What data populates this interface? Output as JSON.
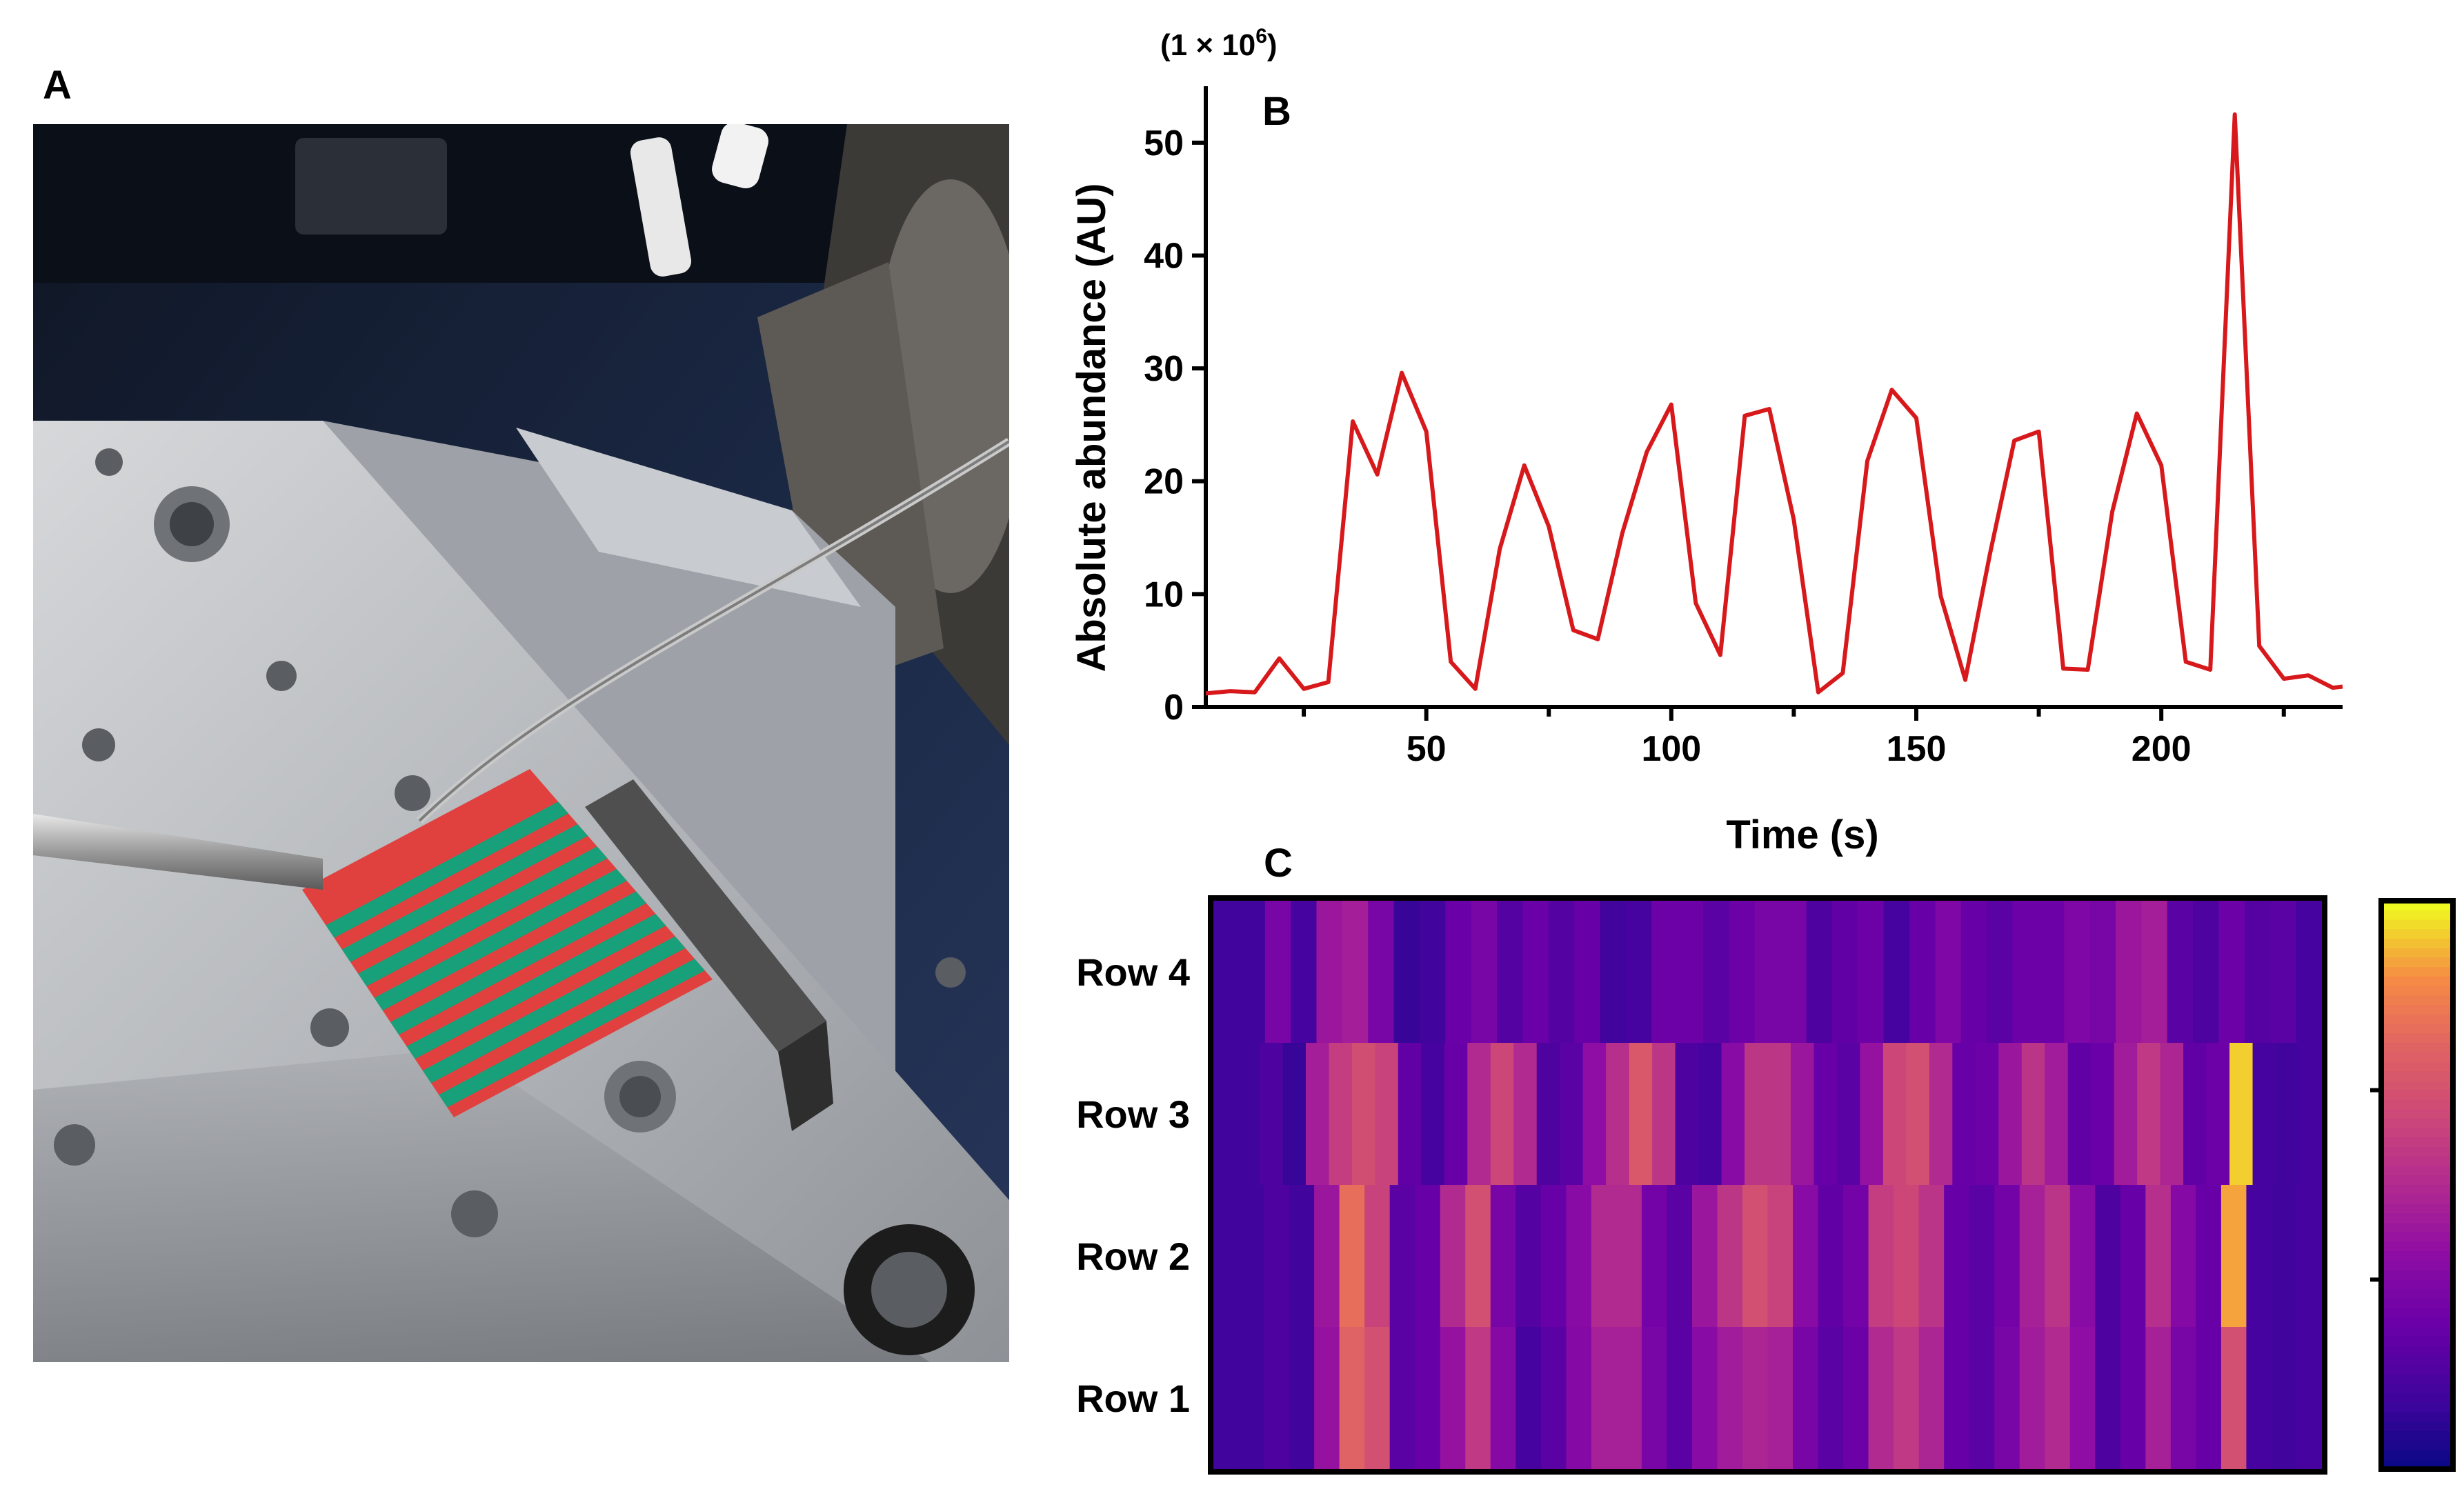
{
  "panels": {
    "a": "A",
    "b": "B",
    "c": "C"
  },
  "photo": {
    "description_icon": "mass-spec-stage-photo",
    "colors": {
      "metal": "#b9bcc0",
      "dark": "#1f2a44",
      "red": "#e0403e",
      "green": "#17a07a"
    }
  },
  "chart_data": [
    {
      "type": "line",
      "xlabel": "Time (s)",
      "ylabel": "Absolute abundance (AU)",
      "y_multiplier": "(1 × 10",
      "y_multiplier_exp": "6",
      "y_multiplier_close": ")",
      "xlim": [
        5,
        237
      ],
      "ylim": [
        0,
        55
      ],
      "xticks": [
        50,
        100,
        150,
        200
      ],
      "yticks": [
        0,
        10,
        20,
        30,
        40,
        50
      ],
      "line_color": "#d7191c",
      "x": [
        5,
        10,
        15,
        20,
        25,
        30,
        35,
        40,
        45,
        50,
        55,
        60,
        65,
        70,
        75,
        80,
        85,
        90,
        95,
        100,
        105,
        110,
        115,
        120,
        125,
        130,
        135,
        140,
        145,
        150,
        155,
        160,
        165,
        170,
        175,
        180,
        185,
        190,
        195,
        200,
        205,
        210,
        215,
        220,
        225,
        230,
        235,
        237
      ],
      "y": [
        1.2,
        1.4,
        1.3,
        4.3,
        1.6,
        2.2,
        25.3,
        20.6,
        29.6,
        24.4,
        4.0,
        1.6,
        14.0,
        21.4,
        16.0,
        6.8,
        6.0,
        15.4,
        22.6,
        26.8,
        9.2,
        4.6,
        25.8,
        26.4,
        16.6,
        1.3,
        3.0,
        21.8,
        28.1,
        25.6,
        9.8,
        2.4,
        13.5,
        23.6,
        24.4,
        3.4,
        3.3,
        17.3,
        26.0,
        21.4,
        4.0,
        3.3,
        52.5,
        5.4,
        2.5,
        2.8,
        1.7,
        1.8
      ]
    },
    {
      "type": "heatmap",
      "rows": [
        "Row 4",
        "Row 3",
        "Row 2",
        "Row 1"
      ],
      "colormap": "plasma",
      "colorbar_ticks": 3,
      "values": [
        [
          0.12,
          0.12,
          0.3,
          0.14,
          0.42,
          0.45,
          0.3,
          0.1,
          0.12,
          0.25,
          0.3,
          0.18,
          0.25,
          0.18,
          0.24,
          0.12,
          0.14,
          0.26,
          0.26,
          0.2,
          0.26,
          0.3,
          0.3,
          0.16,
          0.22,
          0.26,
          0.14,
          0.24,
          0.32,
          0.24,
          0.2,
          0.26,
          0.26,
          0.32,
          0.3,
          0.42,
          0.45,
          0.2,
          0.16,
          0.26,
          0.18,
          0.2,
          0.14
        ],
        [
          0.12,
          0.12,
          0.16,
          0.1,
          0.45,
          0.58,
          0.65,
          0.6,
          0.22,
          0.14,
          0.24,
          0.5,
          0.62,
          0.5,
          0.16,
          0.2,
          0.38,
          0.52,
          0.7,
          0.55,
          0.16,
          0.14,
          0.36,
          0.55,
          0.55,
          0.42,
          0.24,
          0.2,
          0.4,
          0.62,
          0.66,
          0.5,
          0.24,
          0.26,
          0.42,
          0.54,
          0.44,
          0.22,
          0.25,
          0.44,
          0.56,
          0.48,
          0.22,
          0.26,
          0.95,
          0.14,
          0.12,
          0.14
        ],
        [
          0.12,
          0.12,
          0.16,
          0.12,
          0.42,
          0.78,
          0.6,
          0.2,
          0.24,
          0.5,
          0.66,
          0.3,
          0.18,
          0.24,
          0.36,
          0.5,
          0.5,
          0.28,
          0.2,
          0.42,
          0.55,
          0.66,
          0.6,
          0.36,
          0.22,
          0.28,
          0.58,
          0.62,
          0.54,
          0.24,
          0.2,
          0.28,
          0.46,
          0.54,
          0.36,
          0.16,
          0.24,
          0.52,
          0.34,
          0.24,
          0.9,
          0.14,
          0.12,
          0.14
        ],
        [
          0.12,
          0.12,
          0.16,
          0.12,
          0.4,
          0.74,
          0.66,
          0.2,
          0.24,
          0.4,
          0.56,
          0.34,
          0.14,
          0.2,
          0.34,
          0.46,
          0.46,
          0.3,
          0.2,
          0.36,
          0.44,
          0.48,
          0.46,
          0.3,
          0.2,
          0.26,
          0.5,
          0.56,
          0.48,
          0.24,
          0.2,
          0.3,
          0.44,
          0.5,
          0.38,
          0.16,
          0.24,
          0.46,
          0.3,
          0.24,
          0.66,
          0.14,
          0.12,
          0.14
        ]
      ]
    }
  ]
}
